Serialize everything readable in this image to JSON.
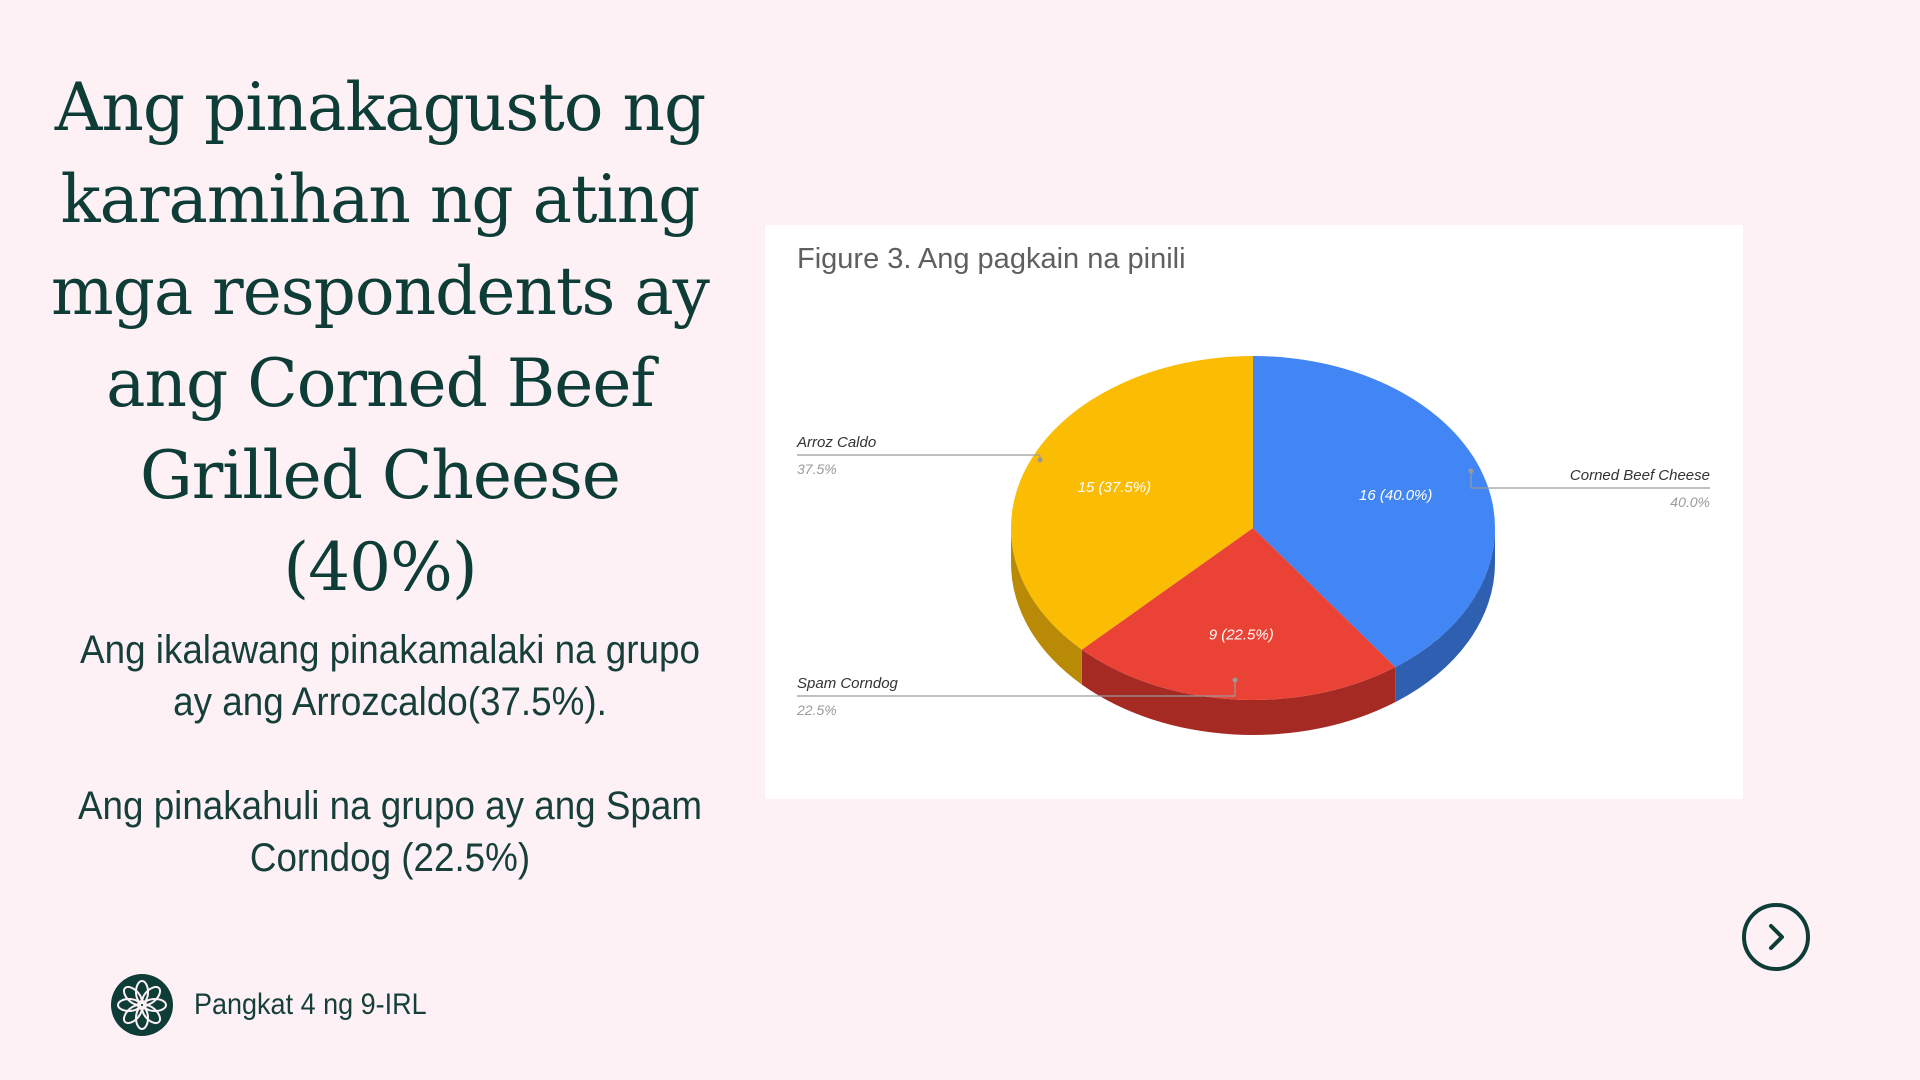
{
  "slide": {
    "headline": "Ang pinakagusto ng karamihan ng ating mga respondents ay ang Corned Beef Grilled Cheese (40%)",
    "paragraph_1": "Ang ikalawang pinakamalaki na grupo ay ang Arrozcaldo(37.5%).",
    "paragraph_2": "Ang pinakahuli na grupo ay ang Spam Corndog (22.5%)",
    "footer_label": "Pangkat 4 ng 9-IRL",
    "logo_icon": "flower-logo-icon",
    "next_icon": "chevron-right-icon"
  },
  "chart_data": {
    "type": "pie",
    "style": "3d",
    "title": "Figure 3. Ang pagkain na pinili",
    "legend": "labels",
    "slices": [
      {
        "label": "Corned Beef Cheese",
        "value": 16,
        "percent": "40.0%",
        "data_label": "16 (40.0%)",
        "color": "#4285f4",
        "side_color": "#2f5fb0"
      },
      {
        "label": "Spam Corndog",
        "value": 9,
        "percent": "22.5%",
        "data_label": "9 (22.5%)",
        "color": "#ea4335",
        "side_color": "#a52a24"
      },
      {
        "label": "Arroz Caldo",
        "value": 15,
        "percent": "37.5%",
        "data_label": "15 (37.5%)",
        "color": "#fbbc04",
        "side_color": "#b88a06"
      }
    ]
  },
  "colors": {
    "background": "#fdf1f6",
    "text": "#0d3d36"
  }
}
